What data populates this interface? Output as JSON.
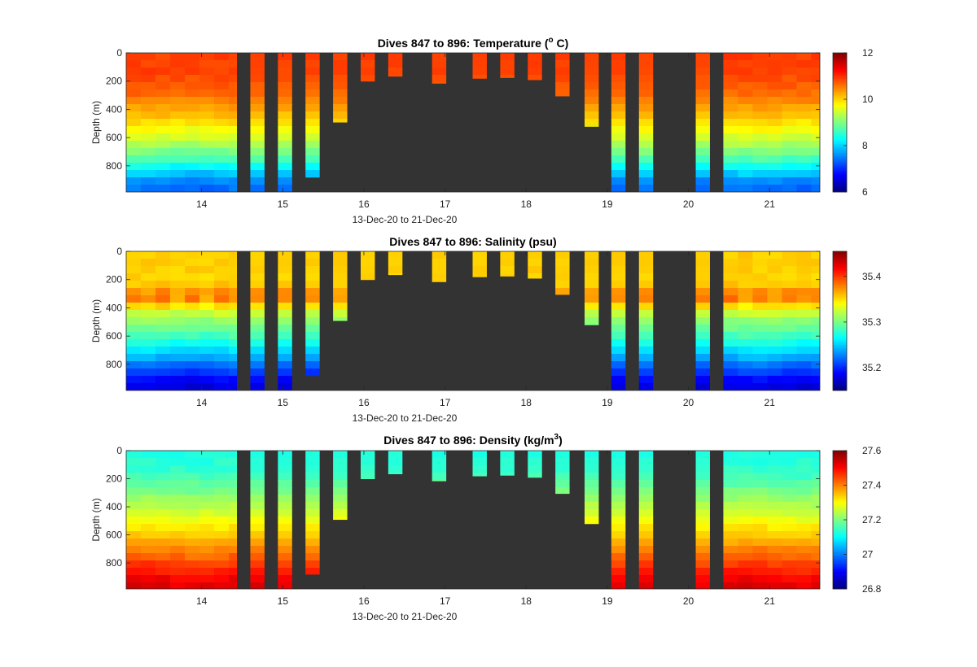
{
  "chart_data": [
    {
      "type": "heatmap",
      "title_main": "Dives 847 to 896: Temperature (",
      "title_sup": "o",
      "title_tail": " C)",
      "xlabel": "13-Dec-20 to 21-Dec-20",
      "ylabel": "Depth (m)",
      "xlim": [
        13.07,
        21.62
      ],
      "ylim": [
        0,
        985
      ],
      "xticks": [
        14,
        15,
        16,
        17,
        18,
        19,
        20,
        21
      ],
      "yticks": [
        0,
        200,
        400,
        600,
        800
      ],
      "colorbar": {
        "range": [
          6,
          12
        ],
        "ticks": [
          6,
          8,
          10,
          12
        ]
      },
      "profile": {
        "depth": [
          0,
          150,
          300,
          450,
          600,
          750,
          900,
          985
        ],
        "value": [
          10.9,
          10.85,
          10.6,
          10.1,
          9.5,
          8.7,
          7.6,
          7.3
        ]
      }
    },
    {
      "type": "heatmap",
      "title_main": "Dives 847 to 896: Salinity (psu)",
      "title_sup": "",
      "title_tail": "",
      "xlabel": "13-Dec-20 to 21-Dec-20",
      "ylabel": "Depth (m)",
      "xlim": [
        13.07,
        21.62
      ],
      "ylim": [
        0,
        985
      ],
      "xticks": [
        14,
        15,
        16,
        17,
        18,
        19,
        20,
        21
      ],
      "yticks": [
        0,
        200,
        400,
        600,
        800
      ],
      "colorbar": {
        "range": [
          35.15,
          35.455
        ],
        "ticks": [
          35.2,
          35.3,
          35.4
        ]
      },
      "profile": {
        "depth": [
          0,
          150,
          300,
          450,
          600,
          750,
          900,
          985
        ],
        "value": [
          35.355,
          35.355,
          35.34,
          35.315,
          35.285,
          35.24,
          35.19,
          35.175
        ]
      },
      "anomaly": {
        "depth": 330,
        "width": 80,
        "amount": 0.05
      }
    },
    {
      "type": "heatmap",
      "title_main": "Dives 847 to 896: Density (kg/m",
      "title_sup": "3",
      "title_tail": ")",
      "xlabel": "13-Dec-20 to 21-Dec-20",
      "ylabel": "Depth (m)",
      "xlim": [
        13.07,
        21.62
      ],
      "ylim": [
        0,
        985
      ],
      "xticks": [
        14,
        15,
        16,
        17,
        18,
        19,
        20,
        21
      ],
      "yticks": [
        0,
        200,
        400,
        600,
        800
      ],
      "colorbar": {
        "range": [
          26.8,
          27.6
        ],
        "ticks": [
          26.8,
          27,
          27.2,
          27.4,
          27.6
        ]
      },
      "profile": {
        "depth": [
          0,
          150,
          300,
          450,
          600,
          750,
          900,
          985
        ],
        "value": [
          27.12,
          27.14,
          27.2,
          27.27,
          27.34,
          27.42,
          27.5,
          27.53
        ]
      }
    }
  ],
  "dives": {
    "full_blocks": [
      {
        "start": 13.07,
        "end": 14.43
      },
      {
        "start": 20.43,
        "end": 21.62
      }
    ],
    "bars": [
      {
        "start": 14.6,
        "end": 14.77,
        "depth": 985
      },
      {
        "start": 14.94,
        "end": 15.11,
        "depth": 985
      },
      {
        "start": 15.28,
        "end": 15.45,
        "depth": 880
      },
      {
        "start": 15.62,
        "end": 15.79,
        "depth": 490
      },
      {
        "start": 15.96,
        "end": 16.13,
        "depth": 200
      },
      {
        "start": 16.3,
        "end": 16.47,
        "depth": 165
      },
      {
        "start": 16.84,
        "end": 17.01,
        "depth": 215
      },
      {
        "start": 17.34,
        "end": 17.51,
        "depth": 180
      },
      {
        "start": 17.68,
        "end": 17.85,
        "depth": 175
      },
      {
        "start": 18.02,
        "end": 18.19,
        "depth": 190
      },
      {
        "start": 18.36,
        "end": 18.53,
        "depth": 305
      },
      {
        "start": 18.72,
        "end": 18.89,
        "depth": 520
      },
      {
        "start": 19.05,
        "end": 19.22,
        "depth": 985
      },
      {
        "start": 19.39,
        "end": 19.56,
        "depth": 985
      },
      {
        "start": 20.09,
        "end": 20.26,
        "depth": 985
      }
    ]
  }
}
